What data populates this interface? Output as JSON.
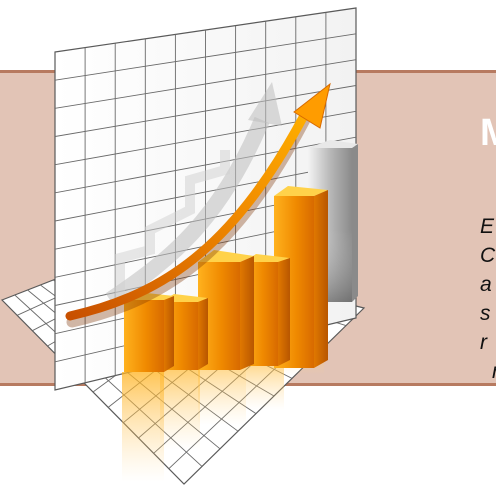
{
  "slide": {
    "title": "M",
    "body_lines": [
      "E",
      "C",
      "a",
      "s",
      "r",
      "r"
    ],
    "colors": {
      "band": "#e2c4b6",
      "band_border": "#b77a60",
      "bar_orange": "#f08a00",
      "bar_highlight": "#ffd24a",
      "bar_gray": "#a8a8a8",
      "arrow": "#e26a00"
    },
    "graphic": {
      "icon": "3d-growth-bar-chart-icon",
      "bar_levels": [
        0.28,
        0.38,
        0.5,
        0.46,
        0.74,
        0.92
      ]
    }
  }
}
